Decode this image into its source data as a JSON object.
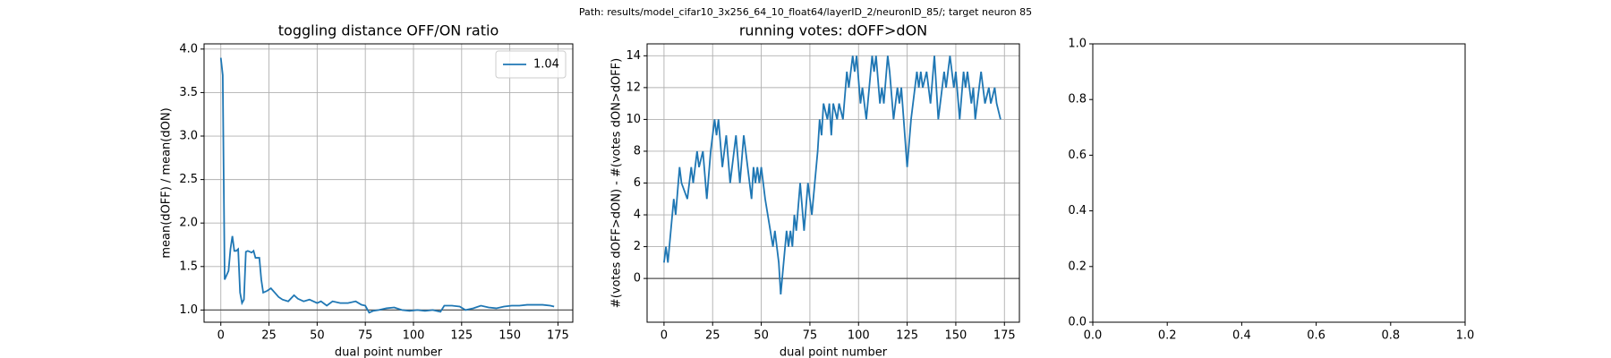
{
  "figure_title": "Path: results/model_cifar10_3x256_64_10_float64/layerID_2/neuronID_85/; target neuron 85",
  "chart_data": [
    {
      "type": "line",
      "title": "toggling distance OFF/ON ratio",
      "x_label": "dual point number",
      "y_label": "mean(dOFF) / mean(dON)",
      "x": [
        0,
        1,
        2,
        3,
        4,
        5,
        6,
        7,
        8,
        9,
        10,
        11,
        12,
        13,
        14,
        16,
        17,
        18,
        20,
        21,
        22,
        24,
        26,
        28,
        30,
        32,
        35,
        38,
        40,
        43,
        46,
        50,
        52,
        55,
        58,
        62,
        66,
        70,
        73,
        75,
        77,
        79,
        82,
        86,
        90,
        94,
        98,
        102,
        106,
        110,
        114,
        116,
        120,
        124,
        127,
        131,
        135,
        139,
        143,
        147,
        151,
        155,
        159,
        163,
        167,
        171,
        173
      ],
      "series": [
        {
          "name": "1.04",
          "color": "#1f77b4",
          "values": [
            3.9,
            3.7,
            1.35,
            1.4,
            1.45,
            1.7,
            1.85,
            1.68,
            1.68,
            1.7,
            1.2,
            1.08,
            1.12,
            1.67,
            1.68,
            1.66,
            1.68,
            1.6,
            1.6,
            1.35,
            1.2,
            1.22,
            1.25,
            1.2,
            1.15,
            1.12,
            1.1,
            1.17,
            1.13,
            1.1,
            1.12,
            1.08,
            1.1,
            1.05,
            1.1,
            1.08,
            1.08,
            1.1,
            1.06,
            1.05,
            0.97,
            0.99,
            1.0,
            1.02,
            1.03,
            1.0,
            0.99,
            1.0,
            0.99,
            1.0,
            0.98,
            1.05,
            1.05,
            1.04,
            1.0,
            1.02,
            1.05,
            1.03,
            1.02,
            1.04,
            1.05,
            1.05,
            1.06,
            1.06,
            1.06,
            1.05,
            1.04
          ]
        }
      ],
      "hline": 1,
      "hline_color": "#555555",
      "xlim": [
        -8.7,
        182.7
      ],
      "xticks": [
        0,
        25,
        50,
        75,
        100,
        125,
        150,
        175
      ],
      "ylim": [
        0.86,
        4.06
      ],
      "yticks": [
        {
          "value": 1,
          "label": "1.0"
        },
        {
          "value": 1.5,
          "label": "1.5"
        },
        {
          "value": 2,
          "label": "2.0"
        },
        {
          "value": 2.5,
          "label": "2.5"
        },
        {
          "value": 3,
          "label": "3.0"
        },
        {
          "value": 3.5,
          "label": "3.5"
        },
        {
          "value": 4,
          "label": "4.0"
        }
      ],
      "grid": true,
      "legend": "upper right"
    },
    {
      "type": "line",
      "title": "running votes: dOFF>dON",
      "x_label": "dual point number",
      "y_label": "#(votes dOFF>dON) - #(votes dON>dOFF)",
      "x": [
        0,
        1,
        2,
        5,
        6,
        8,
        9,
        12,
        14,
        15,
        17,
        18,
        20,
        22,
        24,
        26,
        27,
        28,
        30,
        31,
        32,
        34,
        36,
        37,
        39,
        41,
        43,
        45,
        46,
        47,
        48,
        49,
        50,
        52,
        56,
        57,
        59,
        60,
        63,
        64,
        65,
        66,
        67,
        68,
        70,
        72,
        74,
        76,
        79,
        80,
        81,
        82,
        84,
        85,
        86,
        87,
        89,
        90,
        92,
        94,
        95,
        97,
        98,
        99,
        101,
        102,
        104,
        107,
        108,
        109,
        111,
        112,
        113,
        115,
        116,
        118,
        119,
        120,
        121,
        122,
        125,
        127,
        130,
        131,
        132,
        133,
        135,
        137,
        139,
        141,
        144,
        145,
        147,
        149,
        150,
        152,
        154,
        155,
        156,
        157,
        158,
        159,
        160,
        163,
        164,
        165,
        167,
        168,
        170,
        171,
        173
      ],
      "series": [
        {
          "color": "#1f77b4",
          "values": [
            1,
            2,
            1,
            5,
            4,
            7,
            6,
            5,
            7,
            6,
            8,
            7,
            8,
            5,
            8,
            10,
            9,
            10,
            7,
            8,
            9,
            6,
            8,
            9,
            6,
            9,
            7,
            5,
            7,
            6,
            7,
            6,
            7,
            5,
            2,
            3,
            1,
            -1,
            3,
            2,
            3,
            2,
            4,
            3,
            6,
            3,
            6,
            4,
            8,
            10,
            9,
            11,
            10,
            11,
            9,
            11,
            10,
            11,
            10,
            13,
            12,
            14,
            13,
            14,
            11,
            12,
            10,
            14,
            13,
            14,
            11,
            12,
            11,
            14,
            13,
            10,
            11,
            12,
            11,
            12,
            7,
            10,
            13,
            12,
            13,
            12,
            13,
            11,
            14,
            10,
            13,
            12,
            14,
            12,
            13,
            10,
            13,
            12,
            13,
            12,
            11,
            12,
            10,
            13,
            12,
            11,
            12,
            11,
            12,
            11,
            10
          ]
        }
      ],
      "hline": 0,
      "hline_color": "#555555",
      "xlim": [
        -8.7,
        182.7
      ],
      "xticks": [
        0,
        25,
        50,
        75,
        100,
        125,
        150,
        175
      ],
      "ylim": [
        -2.75,
        14.75
      ],
      "yticks": [
        0,
        2,
        4,
        6,
        8,
        10,
        12,
        14
      ],
      "grid": true
    },
    {
      "type": "empty",
      "xlim": [
        0,
        1
      ],
      "xticks": [
        {
          "value": 0,
          "label": "0.0"
        },
        {
          "value": 0.2,
          "label": "0.2"
        },
        {
          "value": 0.4,
          "label": "0.4"
        },
        {
          "value": 0.6,
          "label": "0.6"
        },
        {
          "value": 0.8,
          "label": "0.8"
        },
        {
          "value": 1,
          "label": "1.0"
        }
      ],
      "ylim": [
        0,
        1
      ],
      "yticks": [
        {
          "value": 0,
          "label": "0.0"
        },
        {
          "value": 0.2,
          "label": "0.2"
        },
        {
          "value": 0.4,
          "label": "0.4"
        },
        {
          "value": 0.6,
          "label": "0.6"
        },
        {
          "value": 0.8,
          "label": "0.8"
        },
        {
          "value": 1,
          "label": "1.0"
        }
      ],
      "grid": false
    }
  ]
}
